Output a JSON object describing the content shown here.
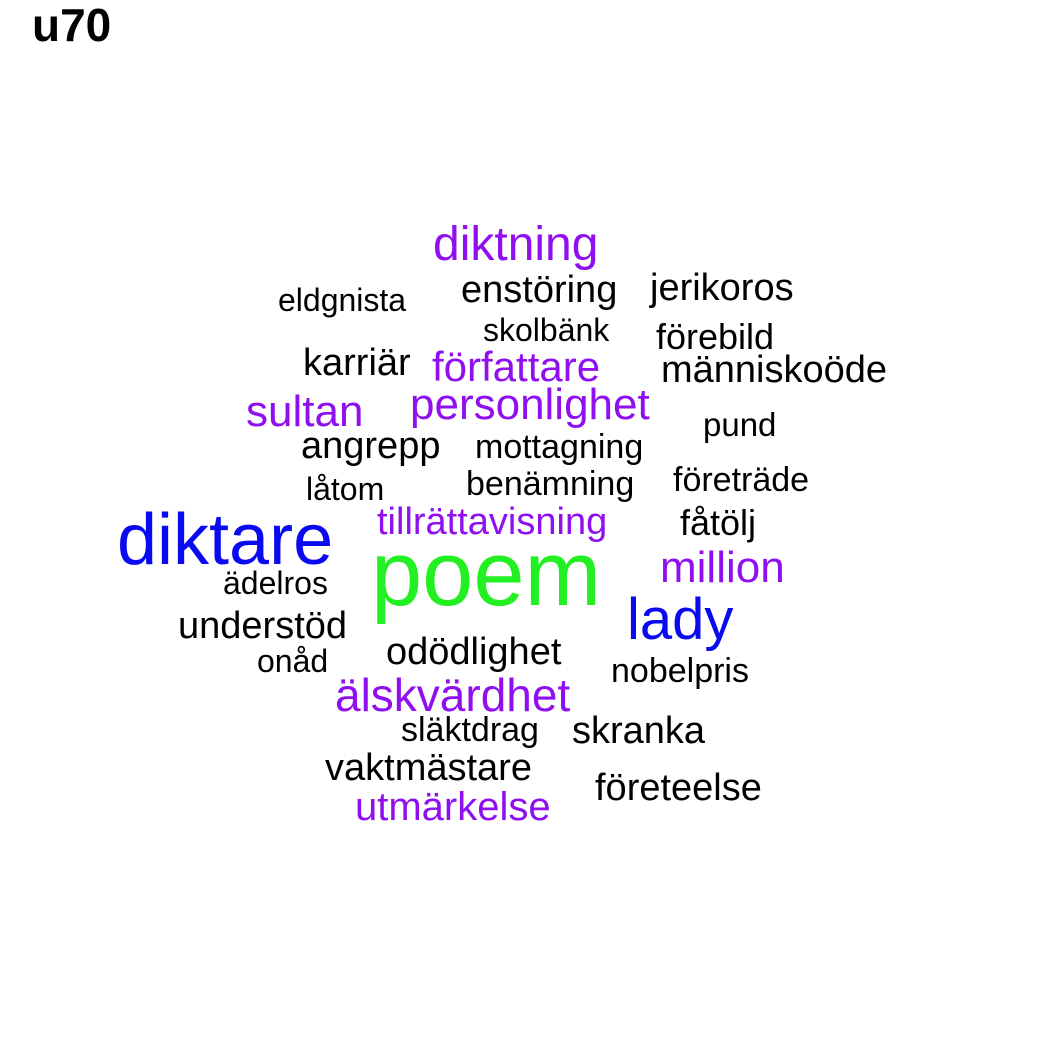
{
  "title": "u70",
  "colors": {
    "background": "#ffffff",
    "tier_black": "#000000",
    "tier_purple": "#8f0ff0",
    "tier_blue": "#0a0af0",
    "tier_green": "#22f022"
  },
  "words": [
    {
      "text": "poem",
      "tier": "green"
    },
    {
      "text": "diktare",
      "tier": "blue"
    },
    {
      "text": "lady",
      "tier": "blue"
    },
    {
      "text": "diktning",
      "tier": "purple"
    },
    {
      "text": "författare",
      "tier": "purple"
    },
    {
      "text": "sultan",
      "tier": "purple"
    },
    {
      "text": "personlighet",
      "tier": "purple"
    },
    {
      "text": "tillrättavisning",
      "tier": "purple"
    },
    {
      "text": "million",
      "tier": "purple"
    },
    {
      "text": "älskvärdhet",
      "tier": "purple"
    },
    {
      "text": "utmärkelse",
      "tier": "purple"
    },
    {
      "text": "enstöring",
      "tier": "black"
    },
    {
      "text": "jerikoros",
      "tier": "black"
    },
    {
      "text": "eldgnista",
      "tier": "black"
    },
    {
      "text": "skolbänk",
      "tier": "black"
    },
    {
      "text": "förebild",
      "tier": "black"
    },
    {
      "text": "karriär",
      "tier": "black"
    },
    {
      "text": "människoöde",
      "tier": "black"
    },
    {
      "text": "pund",
      "tier": "black"
    },
    {
      "text": "angrepp",
      "tier": "black"
    },
    {
      "text": "mottagning",
      "tier": "black"
    },
    {
      "text": "låtom",
      "tier": "black"
    },
    {
      "text": "benämning",
      "tier": "black"
    },
    {
      "text": "företräde",
      "tier": "black"
    },
    {
      "text": "fåtölj",
      "tier": "black"
    },
    {
      "text": "ädelros",
      "tier": "black"
    },
    {
      "text": "understöd",
      "tier": "black"
    },
    {
      "text": "odödlighet",
      "tier": "black"
    },
    {
      "text": "onåd",
      "tier": "black"
    },
    {
      "text": "nobelpris",
      "tier": "black"
    },
    {
      "text": "släktdrag",
      "tier": "black"
    },
    {
      "text": "skranka",
      "tier": "black"
    },
    {
      "text": "vaktmästare",
      "tier": "black"
    },
    {
      "text": "företeelse",
      "tier": "black"
    }
  ]
}
